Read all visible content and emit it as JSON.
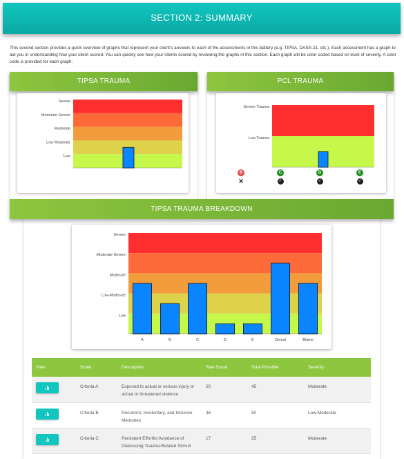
{
  "header": {
    "title": "SECTION 2: SUMMARY"
  },
  "intro": "This second section provides a quick overview of graphs that represent your client's answers to each of the assessments in this battery (e.g. TIPSA, DASS-21, etc.). Each assessment has a graph to aid you in understanding how your client scored. You can quickly see how your clients scored by reviewing the graphs in this section. Each graph will be color coded based on level of severity. A color code is provided for each graph.",
  "panels": {
    "tipsa_title": "TIPSA TRAUMA",
    "pcl_title": "PCL TRAUMA",
    "breakdown_title": "TIPSA TRAUMA BREAKDOWN"
  },
  "colors": {
    "severe": "#ff2f2f",
    "moderate_severe": "#fb6a38",
    "moderate": "#f29c3c",
    "low_moderate": "#ddd24a",
    "low": "#c5f84a",
    "bar": "#0a84ff",
    "teal": "#12c6c0",
    "green": "#8dc63f"
  },
  "chart_data": [
    {
      "type": "bar",
      "title": "TIPSA TRAUMA",
      "severity_bands": [
        "Severe",
        "Moderate Severe",
        "Moderate",
        "Low Moderate",
        "Low"
      ],
      "values": [
        1.5
      ],
      "ylim": [
        0,
        5
      ],
      "grid": false
    },
    {
      "type": "bar",
      "title": "PCL TRAUMA",
      "severity_bands": [
        "Severe Trauma",
        "Low Trauma"
      ],
      "values": [
        0.25
      ],
      "ylim": [
        0,
        1
      ],
      "criteria": [
        {
          "label": "B",
          "status": "not met",
          "color": "#e04848",
          "mark": "✕"
        },
        {
          "label": "C",
          "status": "met",
          "color": "#1e8e1e",
          "mark": "✓"
        },
        {
          "label": "D",
          "status": "met",
          "color": "#1e8e1e",
          "mark": "✓"
        },
        {
          "label": "E",
          "status": "met",
          "color": "#1e8e1e",
          "mark": "✓"
        }
      ]
    },
    {
      "type": "bar",
      "title": "TIPSA TRAUMA BREAKDOWN",
      "severity_bands": [
        "Severe",
        "Moderate-Severe",
        "Moderate",
        "Low-Moderate",
        "Low"
      ],
      "categories": [
        "A",
        "B",
        "C",
        "D",
        "E",
        "Denial",
        "Blame"
      ],
      "values": [
        2.5,
        1.5,
        2.5,
        0.5,
        0.5,
        3.5,
        2.5
      ],
      "ylim": [
        0,
        5
      ],
      "grid": false
    }
  ],
  "table": {
    "headers": [
      "View",
      "Scale",
      "Description",
      "Raw Score",
      "Total Possible",
      "Severity"
    ],
    "rows": [
      {
        "scale": "Criteria A",
        "description": "Exposed to actual or serious injury or actual or threatened violence",
        "raw": "20",
        "total": "45",
        "severity": "Moderate"
      },
      {
        "scale": "Criteria B",
        "description": "Recurrent, Involuntary, and Intrusive Memories",
        "raw": "36",
        "total": "50",
        "severity": "Low-Moderate"
      },
      {
        "scale": "Criteria C",
        "description": "Persistent Effortful Avoidance of Distressing Trauma-Related Stimuli",
        "raw": "17",
        "total": "25",
        "severity": "Moderate"
      }
    ]
  }
}
